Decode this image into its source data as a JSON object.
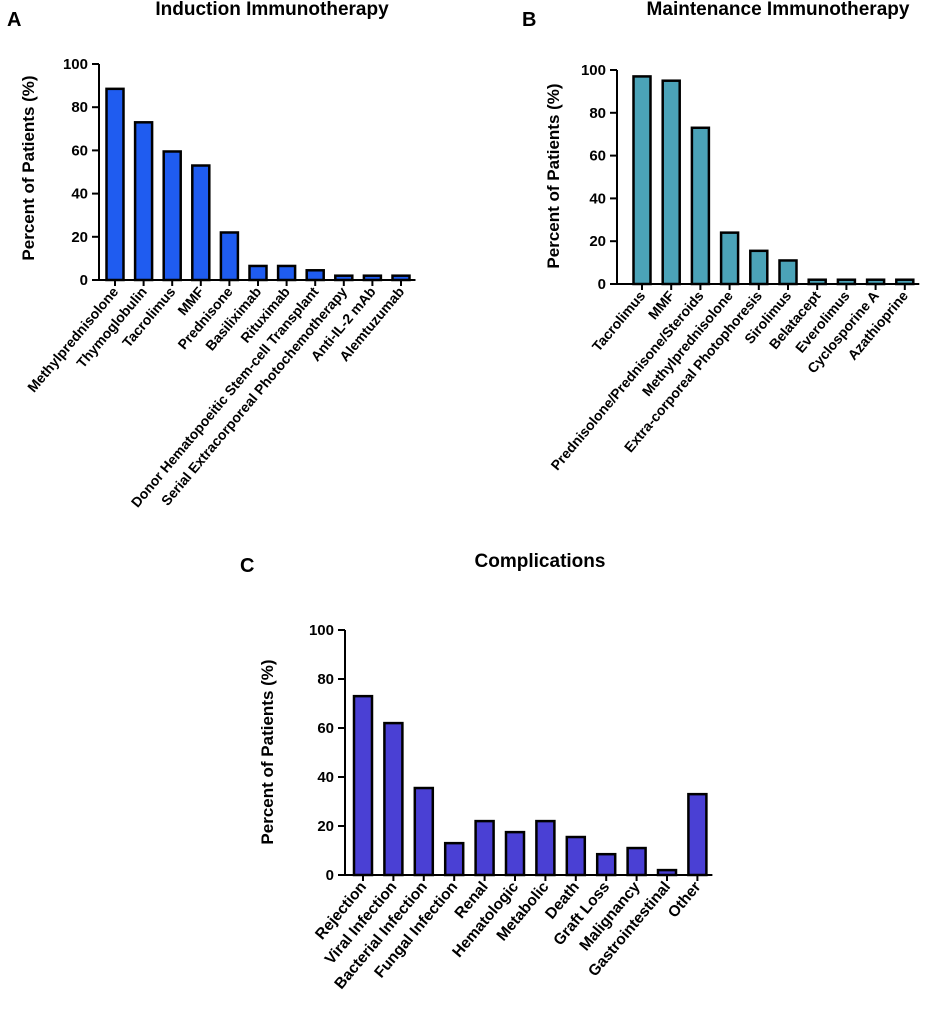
{
  "chart_data": [
    {
      "type": "bar",
      "panel": "A",
      "title": "Induction Immunotherapy",
      "xlabel": "",
      "ylabel": "Percent of Patients (%)",
      "ylim": [
        0,
        100
      ],
      "yticks": [
        0,
        20,
        40,
        60,
        80,
        100
      ],
      "bar_color": "#1f5cf0",
      "categories": [
        "Methylprednisolone",
        "Thymoglobulin",
        "Tacrolimus",
        "MMF",
        "Prednisone",
        "Basiliximab",
        "Rituximab",
        "Donor Hematopoeitic Stem-cell Transplant",
        "Serial Extracorporeal Photochemotherapy",
        "Anti-IL-2 mAb",
        "Alemtuzumab"
      ],
      "values": [
        88.5,
        73,
        59.5,
        53,
        22,
        6.5,
        6.5,
        4.5,
        2,
        2,
        2
      ]
    },
    {
      "type": "bar",
      "panel": "B",
      "title": "Maintenance Immunotherapy",
      "xlabel": "",
      "ylabel": "Percent of Patients (%)",
      "ylim": [
        0,
        100
      ],
      "yticks": [
        0,
        20,
        40,
        60,
        80,
        100
      ],
      "bar_color": "#4ba3b8",
      "categories": [
        "Tacrolimus",
        "MMF",
        "Prednisolone/Prednisone/Steroids",
        "Methylprednisolone",
        "Extra-corporeal Photophoresis",
        "Sirolimus",
        "Belatacept",
        "Everolimus",
        "Cyclosporine A",
        "Azathioprine"
      ],
      "values": [
        97,
        95,
        73,
        24,
        15.5,
        11,
        2,
        2,
        2,
        2
      ]
    },
    {
      "type": "bar",
      "panel": "C",
      "title": "Complications",
      "xlabel": "",
      "ylabel": "Percent of Patients (%)",
      "ylim": [
        0,
        100
      ],
      "yticks": [
        0,
        20,
        40,
        60,
        80,
        100
      ],
      "bar_color": "#4a40d4",
      "categories": [
        "Rejection",
        "Viral Infection",
        "Bacterial Infection",
        "Fungal Infection",
        "Renal",
        "Hematologic",
        "Metabolic",
        "Death",
        "Graft Loss",
        "Malignancy",
        "Gastrointestinal",
        "Other"
      ],
      "values": [
        73,
        62,
        35.5,
        13,
        22,
        17.5,
        22,
        15.5,
        8.5,
        11,
        2,
        33
      ]
    }
  ]
}
